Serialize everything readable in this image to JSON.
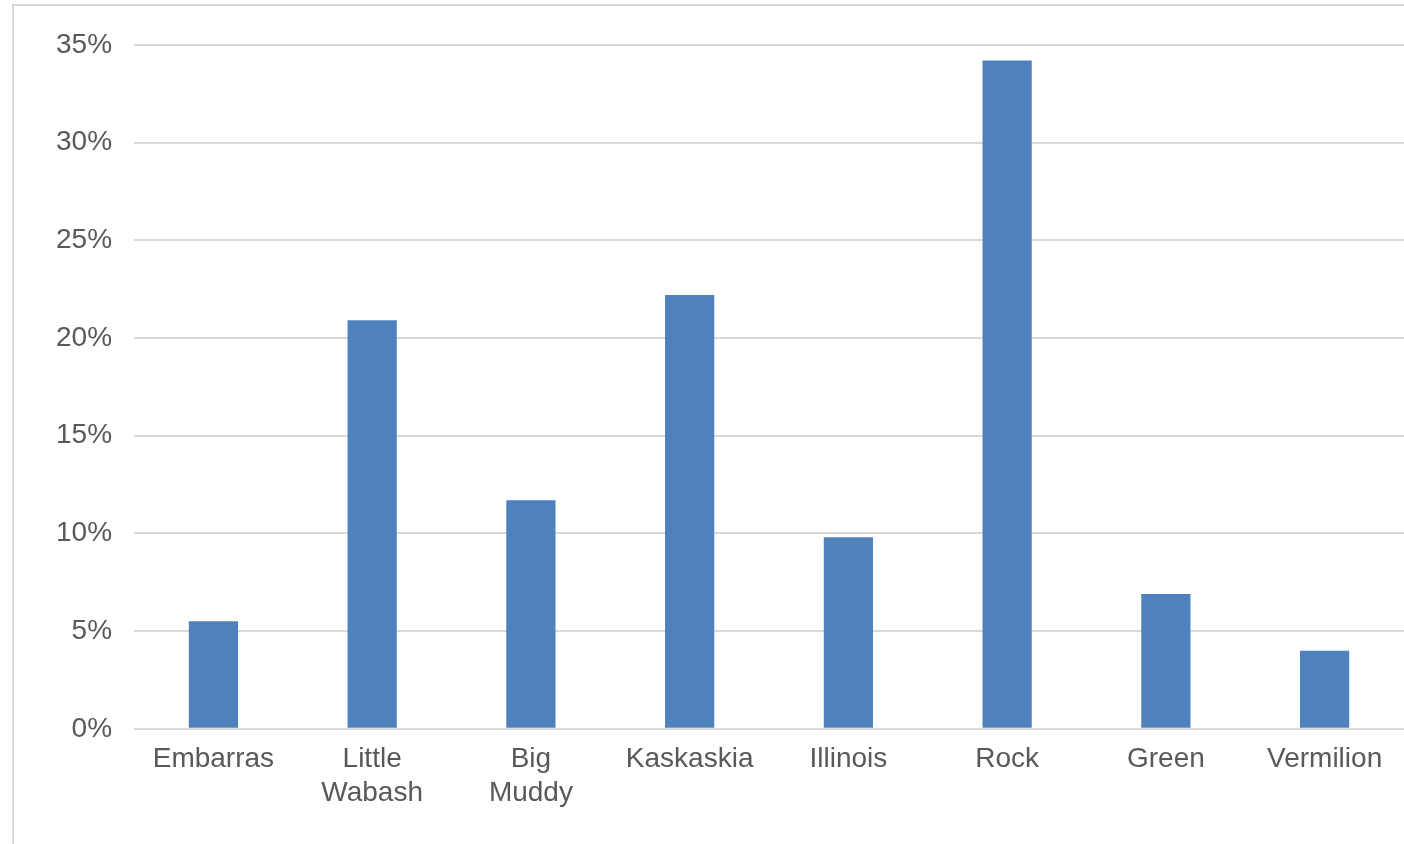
{
  "chart_data": {
    "type": "bar",
    "categories": [
      "Embarras",
      "Little Wabash",
      "Big Muddy",
      "Kaskaskia",
      "Illinois",
      "Rock",
      "Green",
      "Vermilion"
    ],
    "values": [
      5.5,
      20.9,
      11.7,
      22.2,
      9.8,
      34.2,
      6.9,
      4.0
    ],
    "color": "#4f81bd",
    "ylim": [
      0,
      35
    ],
    "yticks": [
      {
        "value": 0,
        "label": "0%"
      },
      {
        "value": 5,
        "label": "5%"
      },
      {
        "value": 10,
        "label": "10%"
      },
      {
        "value": 15,
        "label": "15%"
      },
      {
        "value": 20,
        "label": "20%"
      },
      {
        "value": 25,
        "label": "25%"
      },
      {
        "value": 30,
        "label": "30%"
      },
      {
        "value": 35,
        "label": "35%"
      }
    ],
    "grid": "y",
    "legend": false
  }
}
